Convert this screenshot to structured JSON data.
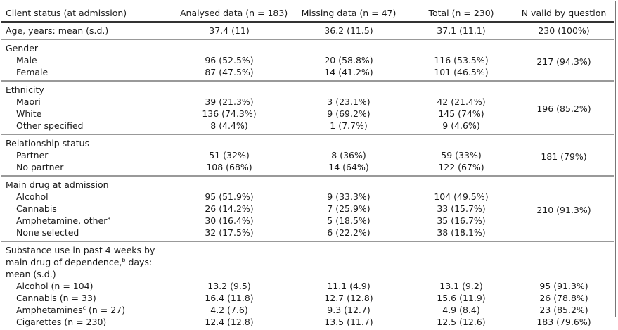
{
  "header": [
    "Client status (at admission)",
    "Analysed data (n = 183)",
    "Missing data (n = 47)",
    "Total (n = 230)",
    "N valid by question"
  ],
  "groups": [
    {
      "title": "Age, years: mean (s.d.)",
      "title_values": [
        "37.4 (11)",
        "36.2 (11.5)",
        "37.1 (11.1)"
      ],
      "valid": "230 (100%)",
      "rows": []
    },
    {
      "title": "Gender",
      "valid": "217 (94.3%)",
      "rows": [
        {
          "label": "Male",
          "values": [
            "96 (52.5%)",
            "20 (58.8%)",
            "116 (53.5%)"
          ]
        },
        {
          "label": "Female",
          "values": [
            "87 (47.5%)",
            "14 (41.2%)",
            "101 (46.5%)"
          ]
        }
      ]
    },
    {
      "title": "Ethnicity",
      "valid": "196 (85.2%)",
      "rows": [
        {
          "label": "Maori",
          "values": [
            "39 (21.3%)",
            "3 (23.1%)",
            "42 (21.4%)"
          ]
        },
        {
          "label": "White",
          "values": [
            "136 (74.3%)",
            "9 (69.2%)",
            "145 (74%)"
          ]
        },
        {
          "label": "Other specified",
          "values": [
            "8 (4.4%)",
            "1 (7.7%)",
            "9 (4.6%)"
          ]
        }
      ]
    },
    {
      "title": "Relationship status",
      "valid": "181 (79%)",
      "rows": [
        {
          "label": "Partner",
          "values": [
            "51 (32%)",
            "8 (36%)",
            "59 (33%)"
          ]
        },
        {
          "label": "No partner",
          "values": [
            "108 (68%)",
            "14 (64%)",
            "122 (67%)"
          ]
        }
      ]
    },
    {
      "title": "Main drug at admission",
      "valid": "210 (91.3%)",
      "rows": [
        {
          "label": "Alcohol",
          "values": [
            "95 (51.9%)",
            "9 (33.3%)",
            "104 (49.5%)"
          ]
        },
        {
          "label": "Cannabis",
          "values": [
            "26 (14.2%)",
            "7 (25.9%)",
            "33 (15.7%)"
          ]
        },
        {
          "label": "Amphetamine, other",
          "sup": "a",
          "values": [
            "30 (16.4%)",
            "5 (18.5%)",
            "35 (16.7%)"
          ]
        },
        {
          "label": "None selected",
          "values": [
            "32 (17.5%)",
            "6 (22.2%)",
            "38 (18.1%)"
          ]
        }
      ]
    },
    {
      "title_lines": [
        {
          "text": "Substance use in past 4 weeks by"
        },
        {
          "text": "main drug of dependence,",
          "sup": "b",
          "after": " days:"
        },
        {
          "text": "mean (s.d.)"
        }
      ],
      "rows": [
        {
          "label": "Alcohol (n = 104)",
          "values": [
            "13.2 (9.5)",
            "11.1 (4.9)",
            "13.1 (9.2)"
          ],
          "valid": "95 (91.3%)"
        },
        {
          "label": "Cannabis (n = 33)",
          "values": [
            "16.4 (11.8)",
            "12.7 (12.8)",
            "15.6 (11.9)"
          ],
          "valid": "26 (78.8%)"
        },
        {
          "label": "Amphetamines",
          "sup": "c",
          "after": " (n = 27)",
          "values": [
            "4.2 (7.6)",
            "9.3 (12.7)",
            "4.9 (8.4)"
          ],
          "valid": "23 (85.2%)"
        },
        {
          "label": "Cigarettes (n = 230)",
          "values": [
            "12.4 (12.8)",
            "13.5 (11.7)",
            "12.5 (12.6)"
          ],
          "valid": "183 (79.6%)"
        }
      ]
    }
  ]
}
